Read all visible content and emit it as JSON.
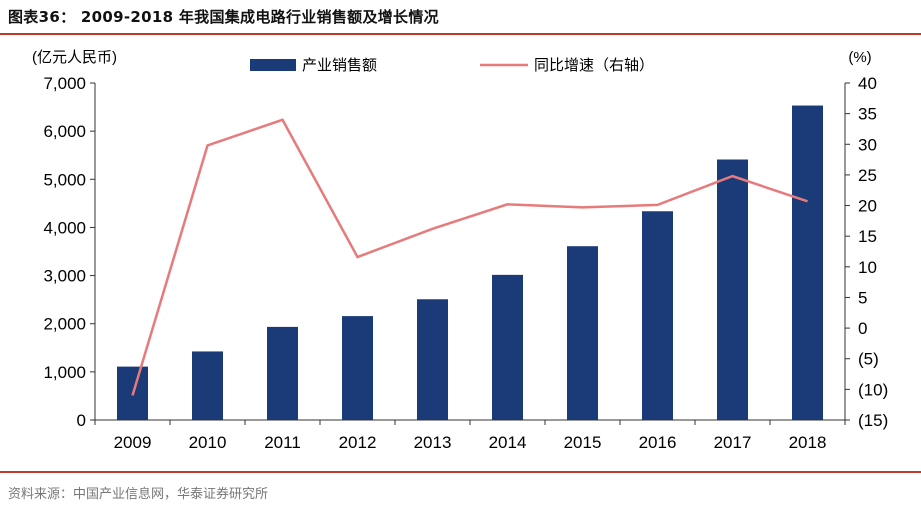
{
  "figure": {
    "title": "图表36： 2009-2018 年我国集成电路行业销售额及增长情况",
    "source": "资料来源：中国产业信息网，华泰证券研究所"
  },
  "colors": {
    "bar": "#1a3a78",
    "line": "#e77a7a",
    "rule": "#c0392b"
  },
  "chart_data": {
    "type": "bar",
    "categories": [
      "2009",
      "2010",
      "2011",
      "2012",
      "2013",
      "2014",
      "2015",
      "2016",
      "2017",
      "2018"
    ],
    "series": [
      {
        "name": "产业销售额",
        "type": "bar",
        "axis": "left",
        "values": [
          1109,
          1424,
          1934,
          2158,
          2508,
          3015,
          3610,
          4336,
          5411,
          6532
        ]
      },
      {
        "name": "同比增速（右轴）",
        "type": "line",
        "axis": "right",
        "values": [
          -11.0,
          29.8,
          34.0,
          11.6,
          16.2,
          20.2,
          19.7,
          20.1,
          24.8,
          20.7
        ]
      }
    ],
    "left_axis": {
      "label": "(亿元人民币)",
      "ylim": [
        0,
        7000
      ],
      "ticks": [
        "0",
        "1,000",
        "2,000",
        "3,000",
        "4,000",
        "5,000",
        "6,000",
        "7,000"
      ]
    },
    "right_axis": {
      "label": "(%)",
      "ylim": [
        -15,
        40
      ],
      "ticks": [
        "(15)",
        "(10)",
        "(5)",
        "0",
        "5",
        "10",
        "15",
        "20",
        "25",
        "30",
        "35",
        "40"
      ]
    },
    "legend_position": "top-center",
    "grid": false
  }
}
